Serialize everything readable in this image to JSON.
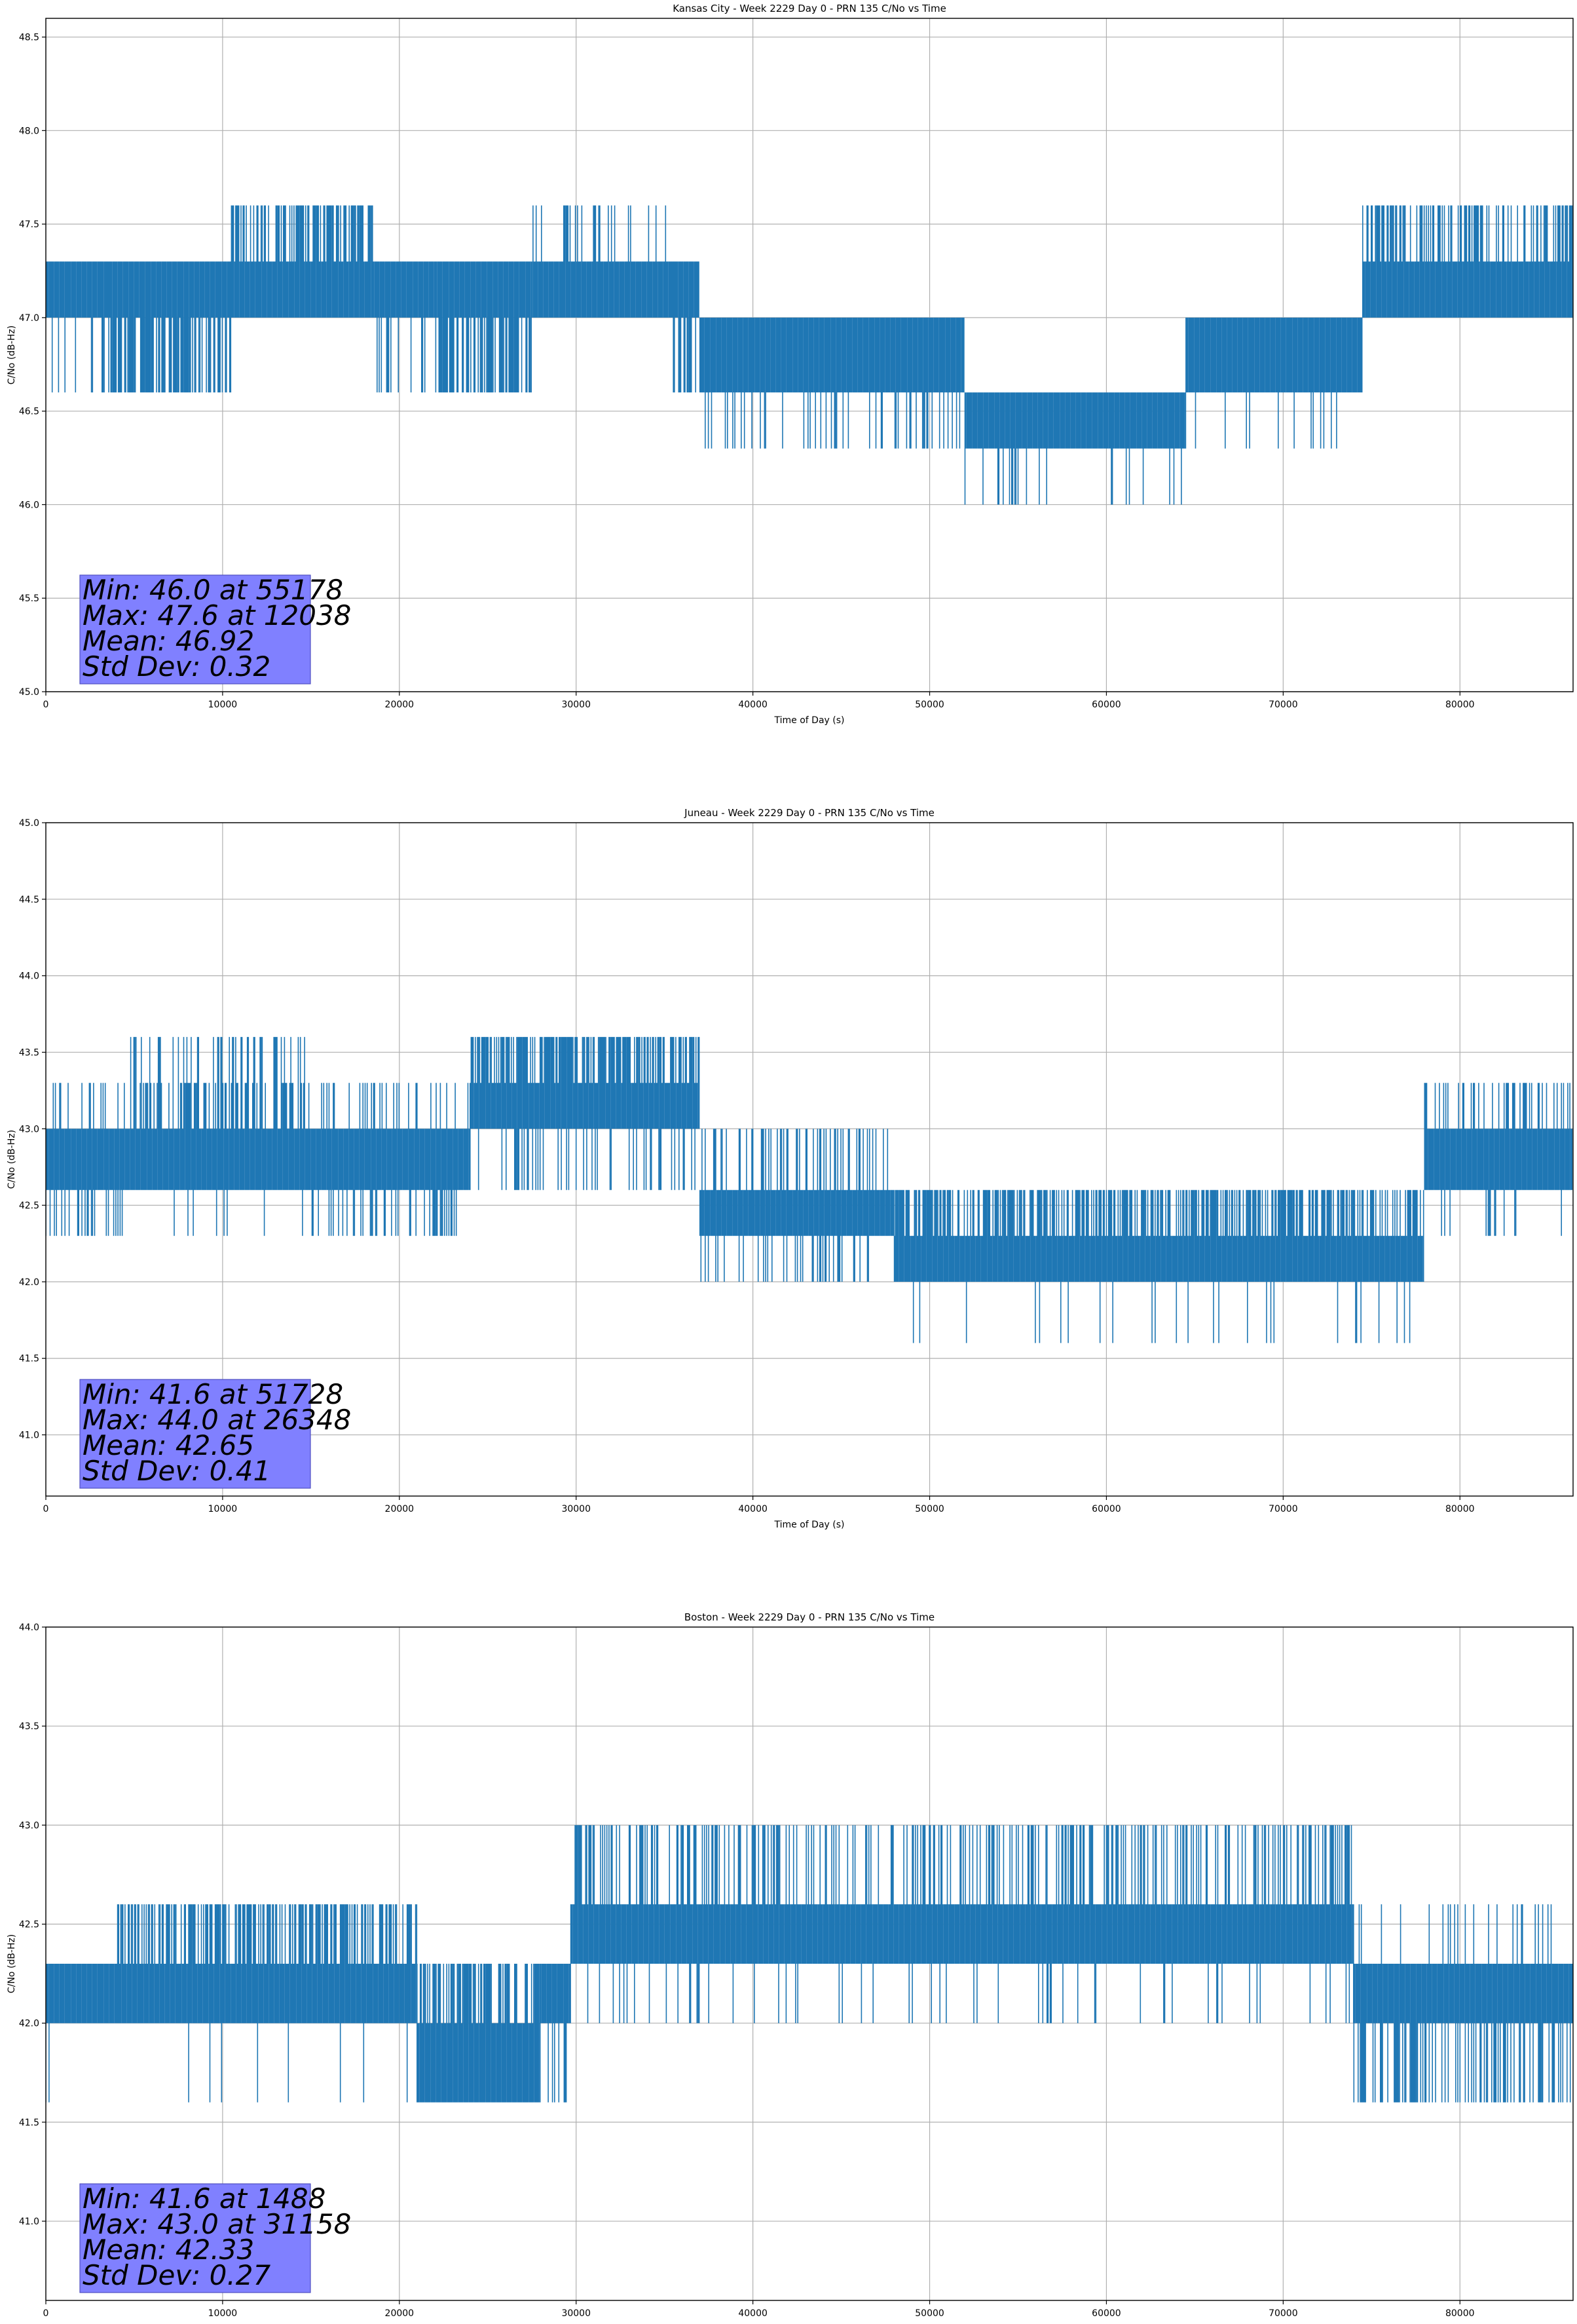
{
  "colors": {
    "series": "#1f77b4",
    "stats_box": "#8080ff",
    "grid": "#b0b0b0"
  },
  "chart_data": [
    {
      "type": "line",
      "title": "Kansas City - Week 2229 Day 0 - PRN 135 C/No vs Time",
      "xlabel": "Time of Day (s)",
      "ylabel": "C/No (dB-Hz)",
      "xlim": [
        0,
        86400
      ],
      "ylim": [
        45.0,
        48.6
      ],
      "xticks": [
        0,
        10000,
        20000,
        30000,
        40000,
        50000,
        60000,
        70000,
        80000
      ],
      "yticks": [
        "45.0",
        "45.5",
        "46.0",
        "46.5",
        "47.0",
        "47.5",
        "48.0",
        "48.5"
      ],
      "grid": true,
      "stats": [
        "Min: 46.0 at 55178",
        "Max: 47.6 at 12038",
        "Mean: 46.92",
        "Std Dev: 0.32"
      ],
      "segments": [
        {
          "x0": 0,
          "x1": 3500,
          "base": [
            47.0,
            47.3
          ],
          "up": [],
          "down": [
            46.6
          ],
          "up_d": 0,
          "down_d": 0.2
        },
        {
          "x0": 3500,
          "x1": 10500,
          "base": [
            47.0,
            47.3
          ],
          "up": [],
          "down": [
            46.6
          ],
          "up_d": 0,
          "down_d": 0.7
        },
        {
          "x0": 10500,
          "x1": 18500,
          "base": [
            47.0,
            47.3
          ],
          "up": [
            47.6
          ],
          "down": [],
          "up_d": 0.6,
          "down_d": 0
        },
        {
          "x0": 18500,
          "x1": 22000,
          "base": [
            47.0,
            47.3
          ],
          "up": [],
          "down": [
            46.6
          ],
          "up_d": 0,
          "down_d": 0.15
        },
        {
          "x0": 22000,
          "x1": 27500,
          "base": [
            47.0,
            47.3
          ],
          "up": [],
          "down": [
            46.6
          ],
          "up_d": 0,
          "down_d": 0.7
        },
        {
          "x0": 27500,
          "x1": 35500,
          "base": [
            47.0,
            47.3
          ],
          "up": [
            47.6
          ],
          "down": [],
          "up_d": 0.15,
          "down_d": 0
        },
        {
          "x0": 35500,
          "x1": 37000,
          "base": [
            47.0,
            47.3
          ],
          "up": [],
          "down": [
            46.6
          ],
          "up_d": 0,
          "down_d": 0.4
        },
        {
          "x0": 37000,
          "x1": 52000,
          "base": [
            46.6,
            47.0
          ],
          "up": [],
          "down": [
            46.3
          ],
          "up_d": 0,
          "down_d": 0.2
        },
        {
          "x0": 52000,
          "x1": 64500,
          "base": [
            46.3,
            46.6
          ],
          "up": [],
          "down": [
            46.0
          ],
          "up_d": 0,
          "down_d": 0.08
        },
        {
          "x0": 64500,
          "x1": 74500,
          "base": [
            46.6,
            47.0
          ],
          "up": [],
          "down": [
            46.3
          ],
          "up_d": 0,
          "down_d": 0.1
        },
        {
          "x0": 74500,
          "x1": 86400,
          "base": [
            47.0,
            47.3
          ],
          "up": [
            47.6
          ],
          "down": [],
          "up_d": 0.5,
          "down_d": 0
        }
      ]
    },
    {
      "type": "line",
      "title": "Juneau - Week 2229 Day 0 - PRN 135 C/No vs Time",
      "xlabel": "Time of Day (s)",
      "ylabel": "C/No (dB-Hz)",
      "xlim": [
        0,
        86400
      ],
      "ylim": [
        40.6,
        45.0
      ],
      "xticks": [
        0,
        10000,
        20000,
        30000,
        40000,
        50000,
        60000,
        70000,
        80000
      ],
      "yticks": [
        "41.0",
        "41.5",
        "42.0",
        "42.5",
        "43.0",
        "43.5",
        "44.0",
        "44.5",
        "45.0"
      ],
      "grid": true,
      "stats": [
        "Min: 41.6 at 51728",
        "Max: 44.0 at 26348",
        "Mean: 42.65",
        "Std Dev: 0.41"
      ],
      "segments": [
        {
          "x0": 0,
          "x1": 4500,
          "base": [
            42.6,
            43.0
          ],
          "up": [
            43.3
          ],
          "down": [
            42.3
          ],
          "up_d": 0.15,
          "down_d": 0.3
        },
        {
          "x0": 4500,
          "x1": 15000,
          "base": [
            42.6,
            43.0
          ],
          "up": [
            43.3,
            43.6
          ],
          "down": [
            42.3
          ],
          "up_d": 0.6,
          "down_d": 0.05
        },
        {
          "x0": 15000,
          "x1": 24000,
          "base": [
            42.6,
            43.0
          ],
          "up": [
            43.3
          ],
          "down": [
            42.3
          ],
          "up_d": 0.2,
          "down_d": 0.3
        },
        {
          "x0": 24000,
          "x1": 37000,
          "base": [
            43.0,
            43.3
          ],
          "up": [
            43.6
          ],
          "down": [
            42.6
          ],
          "up_d": 0.7,
          "down_d": 0.25
        },
        {
          "x0": 37000,
          "x1": 48000,
          "base": [
            42.3,
            42.6
          ],
          "up": [
            43.0
          ],
          "down": [
            42.0
          ],
          "up_d": 0.25,
          "down_d": 0.2
        },
        {
          "x0": 48000,
          "x1": 78000,
          "base": [
            42.0,
            42.3
          ],
          "up": [
            42.6
          ],
          "down": [
            41.6
          ],
          "up_d": 0.6,
          "down_d": 0.04
        },
        {
          "x0": 78000,
          "x1": 86400,
          "base": [
            42.6,
            43.0
          ],
          "up": [
            43.3
          ],
          "down": [
            42.3
          ],
          "up_d": 0.3,
          "down_d": 0.1
        }
      ]
    },
    {
      "type": "line",
      "title": "Boston - Week 2229 Day 0 - PRN 135 C/No vs Time",
      "xlabel": "Time of Day (s)",
      "ylabel": "C/No (dB-Hz)",
      "xlim": [
        0,
        86400
      ],
      "ylim": [
        40.6,
        44.0
      ],
      "xticks": [
        0,
        10000,
        20000,
        30000,
        40000,
        50000,
        60000,
        70000,
        80000
      ],
      "yticks": [
        "41.0",
        "41.5",
        "42.0",
        "42.5",
        "43.0",
        "43.5",
        "44.0"
      ],
      "grid": true,
      "stats": [
        "Min: 41.6 at 1488",
        "Max: 43.0 at 31158",
        "Mean: 42.33",
        "Std Dev: 0.27"
      ],
      "segments": [
        {
          "x0": 0,
          "x1": 4000,
          "base": [
            42.0,
            42.3
          ],
          "up": [],
          "down": [
            41.6
          ],
          "up_d": 0,
          "down_d": 0.02
        },
        {
          "x0": 4000,
          "x1": 21000,
          "base": [
            42.0,
            42.3
          ],
          "up": [
            42.6
          ],
          "down": [
            41.6
          ],
          "up_d": 0.6,
          "down_d": 0.03
        },
        {
          "x0": 21000,
          "x1": 28000,
          "base": [
            41.6,
            42.0
          ],
          "up": [
            42.3
          ],
          "down": [],
          "up_d": 0.5,
          "down_d": 0
        },
        {
          "x0": 28000,
          "x1": 29700,
          "base": [
            42.0,
            42.3
          ],
          "up": [],
          "down": [
            41.6
          ],
          "up_d": 0,
          "down_d": 0.3
        },
        {
          "x0": 29700,
          "x1": 74000,
          "base": [
            42.3,
            42.6
          ],
          "up": [
            43.0
          ],
          "down": [
            42.0
          ],
          "up_d": 0.35,
          "down_d": 0.08
        },
        {
          "x0": 74000,
          "x1": 86400,
          "base": [
            42.0,
            42.3
          ],
          "up": [
            42.6
          ],
          "down": [
            41.6
          ],
          "up_d": 0.1,
          "down_d": 0.4
        }
      ]
    }
  ]
}
